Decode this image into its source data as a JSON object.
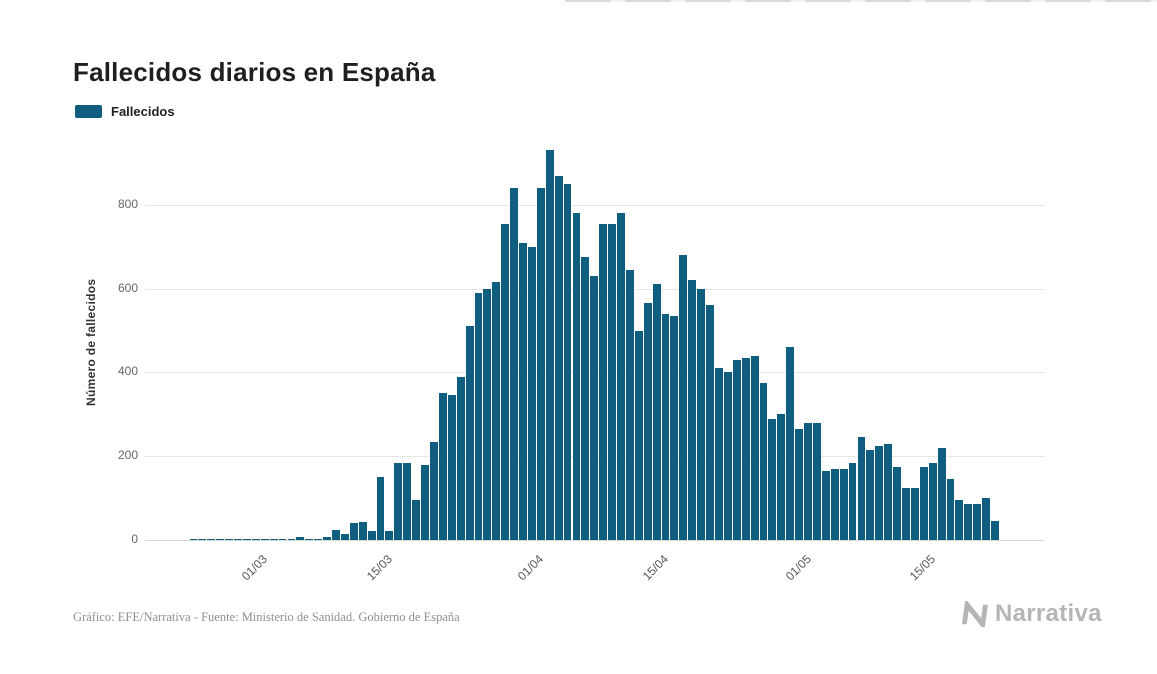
{
  "page": {
    "title": "Fallecidos diarios en España",
    "footer_source": "Gráfico: EFE/Narrativa - Fuente: Ministerio de Sanidad. Gobierno de España",
    "brand": "Narrativa"
  },
  "legend": {
    "label": "Fallecidos",
    "swatch_color": "#0f5e7f"
  },
  "chart_data": {
    "type": "bar",
    "title": "Fallecidos diarios en España",
    "series_name": "Fallecidos",
    "xlabel": "",
    "ylabel": "Número de fallecidos",
    "bar_color": "#0f5e7f",
    "grid": true,
    "legend_position": "top-left",
    "ylim": [
      0,
      943
    ],
    "yticks": [
      0,
      200,
      400,
      600,
      800
    ],
    "xticks": [
      "01/03",
      "15/03",
      "01/04",
      "15/04",
      "01/05",
      "15/05"
    ],
    "categories": [
      "17/02",
      "18/02",
      "19/02",
      "20/02",
      "21/02",
      "22/02",
      "23/02",
      "24/02",
      "25/02",
      "26/02",
      "27/02",
      "28/02",
      "29/02",
      "01/03",
      "02/03",
      "03/03",
      "04/03",
      "05/03",
      "06/03",
      "07/03",
      "08/03",
      "09/03",
      "10/03",
      "11/03",
      "12/03",
      "13/03",
      "14/03",
      "15/03",
      "16/03",
      "17/03",
      "18/03",
      "19/03",
      "20/03",
      "21/03",
      "22/03",
      "23/03",
      "24/03",
      "25/03",
      "26/03",
      "27/03",
      "28/03",
      "29/03",
      "30/03",
      "31/03",
      "01/04",
      "02/04",
      "03/04",
      "04/04",
      "05/04",
      "06/04",
      "07/04",
      "08/04",
      "09/04",
      "10/04",
      "11/04",
      "12/04",
      "13/04",
      "14/04",
      "15/04",
      "16/04",
      "17/04",
      "18/04",
      "19/04",
      "20/04",
      "21/04",
      "22/04",
      "23/04",
      "24/04",
      "25/04",
      "26/04",
      "27/04",
      "28/04",
      "29/04",
      "30/04",
      "01/05",
      "02/05",
      "03/05",
      "04/05",
      "05/05",
      "06/05",
      "07/05",
      "08/05",
      "09/05",
      "10/05",
      "11/05",
      "12/05",
      "13/05",
      "14/05",
      "15/05",
      "16/05",
      "17/05",
      "18/05",
      "19/05",
      "20/05",
      "21/05",
      "22/05"
    ],
    "values": [
      0,
      0,
      0,
      0,
      0,
      1,
      1,
      1,
      1,
      1,
      1,
      1,
      1,
      1,
      2,
      2,
      3,
      6,
      3,
      3,
      6,
      25,
      14,
      40,
      42,
      21,
      150,
      21,
      185,
      185,
      95,
      180,
      235,
      350,
      345,
      390,
      510,
      590,
      600,
      615,
      755,
      840,
      710,
      700,
      840,
      930,
      870,
      850,
      780,
      675,
      630,
      755,
      755,
      780,
      645,
      500,
      565,
      610,
      540,
      535,
      680,
      620,
      600,
      560,
      410,
      400,
      430,
      435,
      440,
      375,
      290,
      300,
      460,
      265,
      280,
      280,
      165,
      170,
      170,
      185,
      245,
      215,
      225,
      230,
      175,
      125,
      125,
      175,
      185,
      220,
      145,
      95,
      85,
      85,
      100,
      45
    ]
  }
}
